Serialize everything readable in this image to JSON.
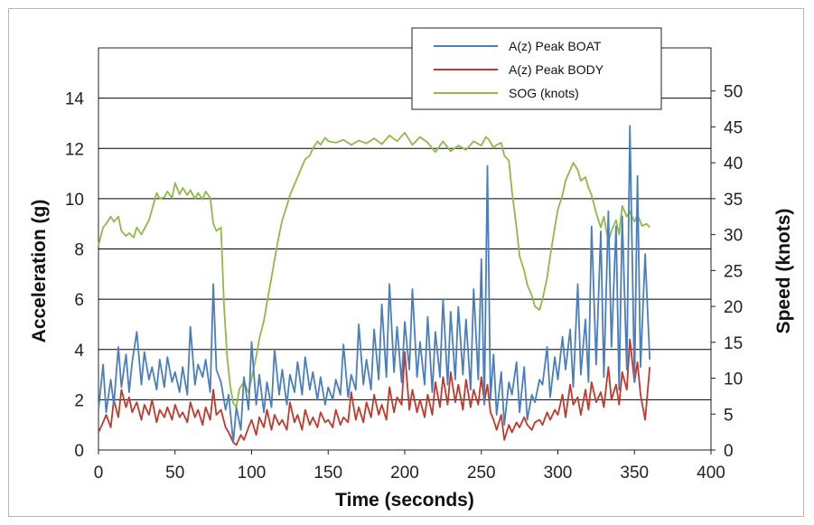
{
  "chart_data": {
    "type": "line",
    "xlabel": "Time (seconds)",
    "ylabel": "Acceleration (g)",
    "y2label": "Speed (knots)",
    "xlim": [
      0,
      400
    ],
    "ylim": [
      0,
      16
    ],
    "y2lim": [
      0,
      56
    ],
    "x_ticks": [
      "0",
      "50",
      "100",
      "150",
      "200",
      "250",
      "300",
      "350",
      "400"
    ],
    "y_ticks": [
      "0",
      "2",
      "4",
      "6",
      "8",
      "10",
      "12",
      "14"
    ],
    "y2_ticks": [
      "0",
      "5",
      "10",
      "15",
      "20",
      "25",
      "30",
      "35",
      "40",
      "45",
      "50"
    ],
    "grid": "horizontal",
    "legend_position": "top-right",
    "colors": {
      "boat": "#4a7ebf",
      "body": "#c0392b",
      "sog": "#8fba47",
      "grid": "#000000"
    },
    "series": [
      {
        "name": "A(z) Peak BOAT",
        "axis": "left",
        "x": [
          0,
          3,
          5,
          8,
          10,
          13,
          15,
          18,
          20,
          22,
          25,
          28,
          30,
          33,
          35,
          38,
          40,
          43,
          45,
          48,
          50,
          53,
          55,
          58,
          60,
          63,
          65,
          68,
          70,
          73,
          75,
          77,
          80,
          83,
          85,
          88,
          90,
          93,
          95,
          98,
          100,
          103,
          105,
          108,
          110,
          113,
          115,
          118,
          120,
          123,
          125,
          128,
          130,
          133,
          135,
          138,
          140,
          143,
          145,
          148,
          150,
          153,
          155,
          158,
          160,
          163,
          165,
          168,
          170,
          173,
          175,
          178,
          180,
          183,
          185,
          188,
          190,
          193,
          195,
          198,
          200,
          203,
          205,
          208,
          210,
          213,
          215,
          218,
          220,
          223,
          225,
          228,
          230,
          233,
          235,
          238,
          240,
          243,
          245,
          248,
          250,
          252,
          254,
          256,
          258,
          260,
          263,
          265,
          268,
          270,
          273,
          275,
          278,
          280,
          283,
          285,
          288,
          290,
          293,
          295,
          298,
          300,
          303,
          305,
          308,
          310,
          313,
          315,
          318,
          320,
          322,
          325,
          328,
          330,
          333,
          335,
          338,
          340,
          342,
          345,
          347,
          350,
          352,
          354,
          357,
          360
        ],
        "values": [
          1.6,
          3.4,
          1.5,
          2.8,
          1.8,
          4.1,
          2.5,
          3.8,
          2.3,
          3.5,
          4.7,
          2.6,
          3.9,
          2.8,
          3.3,
          2.4,
          3.6,
          2.5,
          3.7,
          2.7,
          3.1,
          2.3,
          3.3,
          2.2,
          4.9,
          2.6,
          3.4,
          2.9,
          3.6,
          2.3,
          6.6,
          3.2,
          2.7,
          1.6,
          2.2,
          0.3,
          1.7,
          0.8,
          2.9,
          1.6,
          4.3,
          1.8,
          3.0,
          1.5,
          2.7,
          1.7,
          4.0,
          2.2,
          3.2,
          1.8,
          3.0,
          2.3,
          3.5,
          2.2,
          3.7,
          2.4,
          3.1,
          2.0,
          2.9,
          1.8,
          2.5,
          2.0,
          2.8,
          2.2,
          4.2,
          2.1,
          3.0,
          2.4,
          5.0,
          2.6,
          3.6,
          2.4,
          4.8,
          2.8,
          5.8,
          2.9,
          6.6,
          3.1,
          4.9,
          2.7,
          5.1,
          3.2,
          6.4,
          2.9,
          4.3,
          2.6,
          5.3,
          2.3,
          4.7,
          2.9,
          6.0,
          2.6,
          5.5,
          2.8,
          5.7,
          3.0,
          5.2,
          2.4,
          6.4,
          2.8,
          7.6,
          1.8,
          11.3,
          2.0,
          3.8,
          1.4,
          3.1,
          1.0,
          2.7,
          2.2,
          3.5,
          1.5,
          3.3,
          1.2,
          2.2,
          1.9,
          2.8,
          2.6,
          4.1,
          2.1,
          3.7,
          2.8,
          4.5,
          3.2,
          4.8,
          2.5,
          6.6,
          3.0,
          5.2,
          2.7,
          8.9,
          3.4,
          8.7,
          2.9,
          9.5,
          4.1,
          8.9,
          2.4,
          9.3,
          3.2,
          12.9,
          2.7,
          10.9,
          3.3,
          7.8,
          3.6
        ]
      },
      {
        "name": "A(z) Peak BODY",
        "axis": "left",
        "x": [
          0,
          3,
          5,
          8,
          10,
          13,
          15,
          18,
          20,
          22,
          25,
          28,
          30,
          33,
          35,
          38,
          40,
          43,
          45,
          48,
          50,
          53,
          55,
          58,
          60,
          63,
          65,
          68,
          70,
          73,
          75,
          77,
          80,
          83,
          85,
          88,
          90,
          93,
          95,
          98,
          100,
          103,
          105,
          108,
          110,
          113,
          115,
          118,
          120,
          123,
          125,
          128,
          130,
          133,
          135,
          138,
          140,
          143,
          145,
          148,
          150,
          153,
          155,
          158,
          160,
          163,
          165,
          168,
          170,
          173,
          175,
          178,
          180,
          183,
          185,
          188,
          190,
          193,
          195,
          198,
          200,
          203,
          205,
          208,
          210,
          213,
          215,
          218,
          220,
          223,
          225,
          228,
          230,
          233,
          235,
          238,
          240,
          243,
          245,
          248,
          250,
          252,
          254,
          256,
          258,
          260,
          263,
          265,
          268,
          270,
          273,
          275,
          278,
          280,
          283,
          285,
          288,
          290,
          293,
          295,
          298,
          300,
          303,
          305,
          308,
          310,
          313,
          315,
          318,
          320,
          322,
          325,
          328,
          330,
          333,
          335,
          338,
          340,
          342,
          345,
          347,
          350,
          352,
          354,
          357,
          360
        ],
        "values": [
          0.7,
          1.1,
          1.4,
          0.9,
          2.0,
          1.3,
          2.4,
          1.7,
          2.1,
          1.5,
          1.9,
          1.2,
          1.8,
          1.4,
          2.0,
          1.1,
          1.6,
          1.3,
          1.7,
          1.2,
          1.8,
          1.3,
          1.5,
          1.1,
          1.9,
          1.3,
          1.6,
          1.0,
          1.7,
          1.2,
          2.4,
          1.4,
          1.6,
          0.9,
          0.7,
          0.3,
          0.2,
          0.6,
          0.4,
          0.9,
          1.2,
          0.6,
          1.3,
          0.9,
          1.6,
          0.8,
          1.4,
          1.0,
          1.2,
          0.8,
          1.9,
          1.1,
          1.4,
          0.8,
          1.6,
          1.0,
          1.3,
          0.9,
          1.5,
          1.1,
          1.2,
          0.9,
          1.6,
          1.0,
          1.3,
          1.1,
          2.3,
          1.2,
          1.7,
          1.1,
          1.9,
          1.3,
          2.2,
          1.4,
          1.8,
          1.2,
          2.5,
          1.5,
          2.1,
          1.8,
          3.9,
          1.6,
          2.4,
          1.5,
          2.0,
          1.3,
          2.2,
          1.4,
          2.7,
          1.7,
          2.9,
          1.8,
          3.1,
          1.9,
          2.6,
          1.6,
          2.8,
          1.7,
          2.4,
          1.8,
          2.9,
          1.9,
          2.6,
          1.5,
          1.2,
          0.8,
          1.4,
          0.4,
          1.0,
          0.7,
          1.1,
          0.9,
          1.3,
          1.0,
          0.8,
          1.1,
          1.2,
          1.0,
          1.5,
          1.2,
          1.6,
          1.4,
          2.2,
          1.3,
          2.6,
          1.8,
          2.1,
          1.4,
          2.4,
          1.6,
          2.7,
          1.9,
          2.3,
          1.7,
          3.3,
          2.0,
          2.6,
          1.8,
          3.1,
          2.4,
          4.4,
          2.7,
          3.5,
          2.2,
          1.2,
          3.3
        ]
      },
      {
        "name": "SOG (knots)",
        "axis": "right",
        "x": [
          0,
          3,
          5,
          8,
          10,
          13,
          15,
          18,
          20,
          23,
          25,
          28,
          30,
          33,
          35,
          38,
          40,
          43,
          45,
          48,
          50,
          53,
          55,
          58,
          60,
          63,
          65,
          68,
          70,
          73,
          75,
          77,
          80,
          82,
          84,
          86,
          88,
          90,
          92,
          95,
          98,
          100,
          103,
          105,
          108,
          110,
          113,
          115,
          118,
          120,
          123,
          125,
          128,
          130,
          133,
          135,
          138,
          140,
          143,
          145,
          148,
          150,
          155,
          160,
          165,
          170,
          175,
          180,
          185,
          190,
          195,
          200,
          205,
          210,
          215,
          220,
          225,
          230,
          235,
          240,
          245,
          250,
          253,
          255,
          258,
          260,
          263,
          265,
          268,
          270,
          273,
          275,
          278,
          280,
          283,
          285,
          288,
          290,
          293,
          295,
          298,
          300,
          303,
          305,
          308,
          310,
          313,
          315,
          318,
          320,
          322,
          325,
          328,
          330,
          333,
          335,
          338,
          340,
          342,
          345,
          347,
          350,
          352,
          355,
          358,
          360
        ],
        "values": [
          28.5,
          31.0,
          31.5,
          32.5,
          31.8,
          32.5,
          30.5,
          29.8,
          30.2,
          29.6,
          31.0,
          30.0,
          30.8,
          32.0,
          33.5,
          35.8,
          35.0,
          35.2,
          36.0,
          35.1,
          37.2,
          35.6,
          36.5,
          35.5,
          36.2,
          35.0,
          35.8,
          34.9,
          36.0,
          35.1,
          31.5,
          30.5,
          31.0,
          20.0,
          13.0,
          9.0,
          6.5,
          6.0,
          8.5,
          9.5,
          8.0,
          10.0,
          13.0,
          15.5,
          18.0,
          20.5,
          24.0,
          26.5,
          30.0,
          32.0,
          34.0,
          35.5,
          37.0,
          38.0,
          39.5,
          40.5,
          41.0,
          42.0,
          43.0,
          42.5,
          43.5,
          43.0,
          42.8,
          43.2,
          42.5,
          43.1,
          42.7,
          43.4,
          42.6,
          43.8,
          43.0,
          44.2,
          42.5,
          43.6,
          42.8,
          41.5,
          43.0,
          41.6,
          42.4,
          41.8,
          43.0,
          42.4,
          43.6,
          43.2,
          42.1,
          42.5,
          42.8,
          41.0,
          40.3,
          36.0,
          31.0,
          27.0,
          25.0,
          23.0,
          21.5,
          20.0,
          19.5,
          21.0,
          24.0,
          27.0,
          31.0,
          33.5,
          35.5,
          37.5,
          39.0,
          40.0,
          39.0,
          37.5,
          38.0,
          36.5,
          35.5,
          33.0,
          31.0,
          32.5,
          29.0,
          30.5,
          32.0,
          30.0,
          34.0,
          32.5,
          33.2,
          31.8,
          32.8,
          31.2,
          31.5,
          31.0
        ]
      }
    ]
  }
}
